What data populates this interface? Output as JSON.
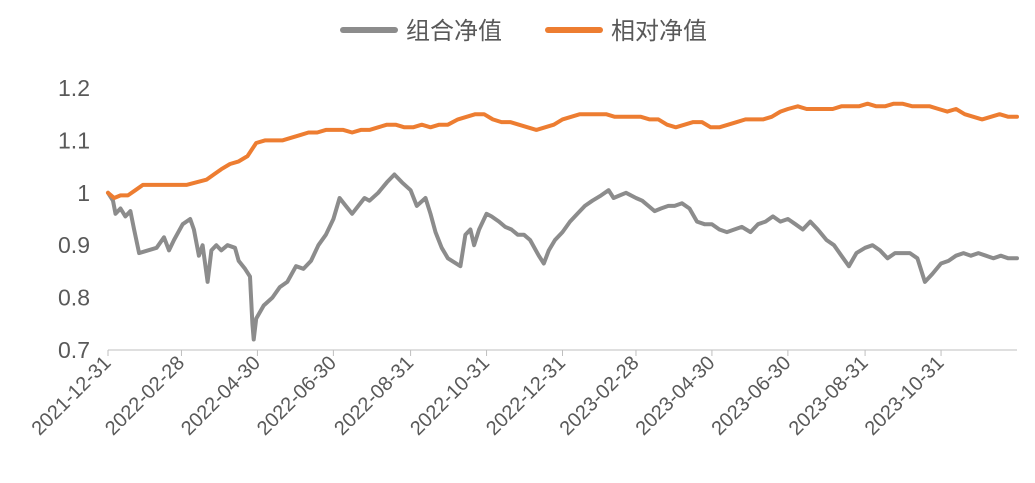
{
  "chart_data": {
    "type": "line",
    "title": "",
    "xlabel": "",
    "ylabel": "",
    "ylim": [
      0.7,
      1.2
    ],
    "y_ticks": [
      "0.7",
      "0.8",
      "0.9",
      "1",
      "1.1",
      "1.2"
    ],
    "y_tick_values": [
      0.7,
      0.8,
      0.9,
      1.0,
      1.1,
      1.2
    ],
    "x_tick_labels": [
      "2021-12-31",
      "2022-02-28",
      "2022-04-30",
      "2022-06-30",
      "2022-08-31",
      "2022-10-31",
      "2022-12-31",
      "2023-02-28",
      "2023-04-30",
      "2023-06-30",
      "2023-08-31",
      "2023-10-31"
    ],
    "x_range": [
      "2021-12-31",
      "2023-12-31"
    ],
    "grid": false,
    "legend_position": "top-center",
    "series": [
      {
        "name": "组合净值",
        "color": "#8c8c8c",
        "points": [
          [
            "2021-12-31",
            1.0
          ],
          [
            "2022-01-04",
            0.985
          ],
          [
            "2022-01-06",
            0.96
          ],
          [
            "2022-01-10",
            0.97
          ],
          [
            "2022-01-14",
            0.955
          ],
          [
            "2022-01-18",
            0.965
          ],
          [
            "2022-01-21",
            0.93
          ],
          [
            "2022-01-25",
            0.885
          ],
          [
            "2022-02-08",
            0.895
          ],
          [
            "2022-02-14",
            0.915
          ],
          [
            "2022-02-18",
            0.89
          ],
          [
            "2022-02-22",
            0.91
          ],
          [
            "2022-03-01",
            0.94
          ],
          [
            "2022-03-07",
            0.95
          ],
          [
            "2022-03-10",
            0.93
          ],
          [
            "2022-03-14",
            0.88
          ],
          [
            "2022-03-17",
            0.9
          ],
          [
            "2022-03-21",
            0.83
          ],
          [
            "2022-03-24",
            0.89
          ],
          [
            "2022-03-28",
            0.9
          ],
          [
            "2022-04-01",
            0.89
          ],
          [
            "2022-04-06",
            0.9
          ],
          [
            "2022-04-12",
            0.895
          ],
          [
            "2022-04-15",
            0.87
          ],
          [
            "2022-04-20",
            0.855
          ],
          [
            "2022-04-24",
            0.84
          ],
          [
            "2022-04-26",
            0.75
          ],
          [
            "2022-04-27",
            0.72
          ],
          [
            "2022-04-29",
            0.76
          ],
          [
            "2022-05-05",
            0.785
          ],
          [
            "2022-05-12",
            0.8
          ],
          [
            "2022-05-18",
            0.82
          ],
          [
            "2022-05-24",
            0.83
          ],
          [
            "2022-05-31",
            0.86
          ],
          [
            "2022-06-06",
            0.855
          ],
          [
            "2022-06-12",
            0.87
          ],
          [
            "2022-06-18",
            0.9
          ],
          [
            "2022-06-24",
            0.92
          ],
          [
            "2022-06-30",
            0.95
          ],
          [
            "2022-07-05",
            0.99
          ],
          [
            "2022-07-10",
            0.975
          ],
          [
            "2022-07-15",
            0.96
          ],
          [
            "2022-07-20",
            0.975
          ],
          [
            "2022-07-25",
            0.99
          ],
          [
            "2022-07-29",
            0.985
          ],
          [
            "2022-08-05",
            1.0
          ],
          [
            "2022-08-12",
            1.02
          ],
          [
            "2022-08-18",
            1.035
          ],
          [
            "2022-08-24",
            1.02
          ],
          [
            "2022-08-31",
            1.005
          ],
          [
            "2022-09-05",
            0.975
          ],
          [
            "2022-09-12",
            0.99
          ],
          [
            "2022-09-16",
            0.96
          ],
          [
            "2022-09-20",
            0.925
          ],
          [
            "2022-09-25",
            0.895
          ],
          [
            "2022-09-30",
            0.875
          ],
          [
            "2022-10-10",
            0.86
          ],
          [
            "2022-10-14",
            0.92
          ],
          [
            "2022-10-18",
            0.93
          ],
          [
            "2022-10-21",
            0.9
          ],
          [
            "2022-10-25",
            0.93
          ],
          [
            "2022-10-31",
            0.96
          ],
          [
            "2022-11-04",
            0.955
          ],
          [
            "2022-11-10",
            0.945
          ],
          [
            "2022-11-15",
            0.935
          ],
          [
            "2022-11-20",
            0.93
          ],
          [
            "2022-11-25",
            0.92
          ],
          [
            "2022-11-30",
            0.92
          ],
          [
            "2022-12-05",
            0.91
          ],
          [
            "2022-12-12",
            0.88
          ],
          [
            "2022-12-16",
            0.865
          ],
          [
            "2022-12-20",
            0.89
          ],
          [
            "2022-12-25",
            0.91
          ],
          [
            "2022-12-31",
            0.925
          ],
          [
            "2023-01-06",
            0.945
          ],
          [
            "2023-01-12",
            0.96
          ],
          [
            "2023-01-18",
            0.975
          ],
          [
            "2023-01-24",
            0.985
          ],
          [
            "2023-01-31",
            0.995
          ],
          [
            "2023-02-06",
            1.005
          ],
          [
            "2023-02-10",
            0.99
          ],
          [
            "2023-02-15",
            0.995
          ],
          [
            "2023-02-20",
            1.0
          ],
          [
            "2023-02-28",
            0.99
          ],
          [
            "2023-03-05",
            0.985
          ],
          [
            "2023-03-10",
            0.975
          ],
          [
            "2023-03-15",
            0.965
          ],
          [
            "2023-03-20",
            0.97
          ],
          [
            "2023-03-26",
            0.975
          ],
          [
            "2023-03-31",
            0.975
          ],
          [
            "2023-04-06",
            0.98
          ],
          [
            "2023-04-12",
            0.97
          ],
          [
            "2023-04-18",
            0.945
          ],
          [
            "2023-04-24",
            0.94
          ],
          [
            "2023-04-30",
            0.94
          ],
          [
            "2023-05-06",
            0.93
          ],
          [
            "2023-05-12",
            0.925
          ],
          [
            "2023-05-18",
            0.93
          ],
          [
            "2023-05-24",
            0.935
          ],
          [
            "2023-05-31",
            0.925
          ],
          [
            "2023-06-06",
            0.94
          ],
          [
            "2023-06-12",
            0.945
          ],
          [
            "2023-06-18",
            0.955
          ],
          [
            "2023-06-24",
            0.945
          ],
          [
            "2023-06-30",
            0.95
          ],
          [
            "2023-07-06",
            0.94
          ],
          [
            "2023-07-12",
            0.93
          ],
          [
            "2023-07-18",
            0.945
          ],
          [
            "2023-07-24",
            0.93
          ],
          [
            "2023-07-31",
            0.91
          ],
          [
            "2023-08-06",
            0.9
          ],
          [
            "2023-08-12",
            0.88
          ],
          [
            "2023-08-18",
            0.86
          ],
          [
            "2023-08-24",
            0.885
          ],
          [
            "2023-08-31",
            0.895
          ],
          [
            "2023-09-06",
            0.9
          ],
          [
            "2023-09-12",
            0.89
          ],
          [
            "2023-09-18",
            0.875
          ],
          [
            "2023-09-24",
            0.885
          ],
          [
            "2023-09-30",
            0.885
          ],
          [
            "2023-10-06",
            0.885
          ],
          [
            "2023-10-12",
            0.875
          ],
          [
            "2023-10-18",
            0.83
          ],
          [
            "2023-10-24",
            0.845
          ],
          [
            "2023-10-31",
            0.865
          ],
          [
            "2023-11-06",
            0.87
          ],
          [
            "2023-11-12",
            0.88
          ],
          [
            "2023-11-18",
            0.885
          ],
          [
            "2023-11-24",
            0.88
          ],
          [
            "2023-11-30",
            0.885
          ],
          [
            "2023-12-06",
            0.88
          ],
          [
            "2023-12-12",
            0.875
          ],
          [
            "2023-12-18",
            0.88
          ],
          [
            "2023-12-24",
            0.875
          ],
          [
            "2023-12-31",
            0.875
          ]
        ]
      },
      {
        "name": "相对净值",
        "color": "#ed7d31",
        "points": [
          [
            "2021-12-31",
            1.0
          ],
          [
            "2022-01-05",
            0.99
          ],
          [
            "2022-01-10",
            0.995
          ],
          [
            "2022-01-16",
            0.995
          ],
          [
            "2022-01-22",
            1.005
          ],
          [
            "2022-01-28",
            1.015
          ],
          [
            "2022-02-08",
            1.015
          ],
          [
            "2022-02-16",
            1.015
          ],
          [
            "2022-02-24",
            1.015
          ],
          [
            "2022-03-04",
            1.015
          ],
          [
            "2022-03-12",
            1.02
          ],
          [
            "2022-03-20",
            1.025
          ],
          [
            "2022-03-26",
            1.035
          ],
          [
            "2022-04-01",
            1.045
          ],
          [
            "2022-04-08",
            1.055
          ],
          [
            "2022-04-15",
            1.06
          ],
          [
            "2022-04-22",
            1.07
          ],
          [
            "2022-04-29",
            1.095
          ],
          [
            "2022-05-06",
            1.1
          ],
          [
            "2022-05-13",
            1.1
          ],
          [
            "2022-05-20",
            1.1
          ],
          [
            "2022-05-27",
            1.105
          ],
          [
            "2022-06-03",
            1.11
          ],
          [
            "2022-06-10",
            1.115
          ],
          [
            "2022-06-17",
            1.115
          ],
          [
            "2022-06-24",
            1.12
          ],
          [
            "2022-06-30",
            1.12
          ],
          [
            "2022-07-08",
            1.12
          ],
          [
            "2022-07-15",
            1.115
          ],
          [
            "2022-07-22",
            1.12
          ],
          [
            "2022-07-29",
            1.12
          ],
          [
            "2022-08-05",
            1.125
          ],
          [
            "2022-08-12",
            1.13
          ],
          [
            "2022-08-19",
            1.13
          ],
          [
            "2022-08-26",
            1.125
          ],
          [
            "2022-09-02",
            1.125
          ],
          [
            "2022-09-09",
            1.13
          ],
          [
            "2022-09-16",
            1.125
          ],
          [
            "2022-09-23",
            1.13
          ],
          [
            "2022-09-30",
            1.13
          ],
          [
            "2022-10-08",
            1.14
          ],
          [
            "2022-10-15",
            1.145
          ],
          [
            "2022-10-22",
            1.15
          ],
          [
            "2022-10-29",
            1.15
          ],
          [
            "2022-11-05",
            1.14
          ],
          [
            "2022-11-12",
            1.135
          ],
          [
            "2022-11-19",
            1.135
          ],
          [
            "2022-11-26",
            1.13
          ],
          [
            "2022-12-03",
            1.125
          ],
          [
            "2022-12-10",
            1.12
          ],
          [
            "2022-12-17",
            1.125
          ],
          [
            "2022-12-24",
            1.13
          ],
          [
            "2022-12-31",
            1.14
          ],
          [
            "2023-01-07",
            1.145
          ],
          [
            "2023-01-14",
            1.15
          ],
          [
            "2023-01-21",
            1.15
          ],
          [
            "2023-01-28",
            1.15
          ],
          [
            "2023-02-04",
            1.15
          ],
          [
            "2023-02-11",
            1.145
          ],
          [
            "2023-02-18",
            1.145
          ],
          [
            "2023-02-25",
            1.145
          ],
          [
            "2023-03-04",
            1.145
          ],
          [
            "2023-03-11",
            1.14
          ],
          [
            "2023-03-18",
            1.14
          ],
          [
            "2023-03-25",
            1.13
          ],
          [
            "2023-04-01",
            1.125
          ],
          [
            "2023-04-08",
            1.13
          ],
          [
            "2023-04-15",
            1.135
          ],
          [
            "2023-04-22",
            1.135
          ],
          [
            "2023-04-29",
            1.125
          ],
          [
            "2023-05-06",
            1.125
          ],
          [
            "2023-05-13",
            1.13
          ],
          [
            "2023-05-20",
            1.135
          ],
          [
            "2023-05-27",
            1.14
          ],
          [
            "2023-06-03",
            1.14
          ],
          [
            "2023-06-10",
            1.14
          ],
          [
            "2023-06-17",
            1.145
          ],
          [
            "2023-06-24",
            1.155
          ],
          [
            "2023-06-30",
            1.16
          ],
          [
            "2023-07-08",
            1.165
          ],
          [
            "2023-07-15",
            1.16
          ],
          [
            "2023-07-22",
            1.16
          ],
          [
            "2023-07-29",
            1.16
          ],
          [
            "2023-08-05",
            1.16
          ],
          [
            "2023-08-12",
            1.165
          ],
          [
            "2023-08-19",
            1.165
          ],
          [
            "2023-08-26",
            1.165
          ],
          [
            "2023-09-02",
            1.17
          ],
          [
            "2023-09-09",
            1.165
          ],
          [
            "2023-09-16",
            1.165
          ],
          [
            "2023-09-23",
            1.17
          ],
          [
            "2023-09-30",
            1.17
          ],
          [
            "2023-10-08",
            1.165
          ],
          [
            "2023-10-15",
            1.165
          ],
          [
            "2023-10-22",
            1.165
          ],
          [
            "2023-10-29",
            1.16
          ],
          [
            "2023-11-05",
            1.155
          ],
          [
            "2023-11-12",
            1.16
          ],
          [
            "2023-11-19",
            1.15
          ],
          [
            "2023-11-26",
            1.145
          ],
          [
            "2023-12-03",
            1.14
          ],
          [
            "2023-12-10",
            1.145
          ],
          [
            "2023-12-17",
            1.15
          ],
          [
            "2023-12-24",
            1.145
          ],
          [
            "2023-12-31",
            1.145
          ]
        ]
      }
    ]
  }
}
